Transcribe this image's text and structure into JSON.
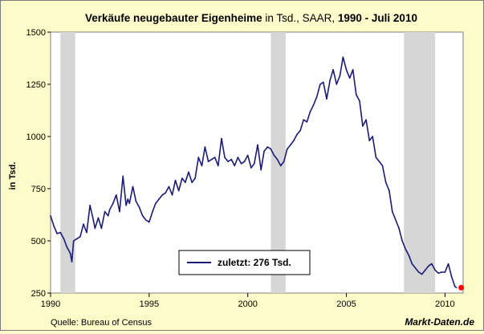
{
  "title": {
    "bold_part": "Verkäufe neugebauter Eigenheime",
    "normal_part": " in Tsd., SAAR, ",
    "bold_range": "1990 -  Juli 2010"
  },
  "source": "Quelle: Bureau of Census",
  "brand": "Markt-Daten.de",
  "colors": {
    "background": "#fdfbc9",
    "plot_bg": "#ffffff",
    "line": "#1a1a7a",
    "recession": "#d6d6d6",
    "last_point": "#ff0000"
  },
  "chart_data": {
    "type": "line",
    "ylabel": "in Tsd.",
    "xlim": [
      1990,
      2010.92
    ],
    "ylim": [
      250,
      1500
    ],
    "x_ticks": [
      1990,
      1995,
      2000,
      2005,
      2010
    ],
    "y_ticks": [
      250,
      500,
      750,
      1000,
      1250,
      1500
    ],
    "grid": false,
    "legend": {
      "position": "bottom-center",
      "label": "zuletzt: 276  Tsd."
    },
    "recessions": [
      [
        1990.5,
        1991.25
      ],
      [
        2001.17,
        2001.92
      ],
      [
        2007.92,
        2009.5
      ]
    ],
    "series": [
      {
        "x": [
          1990.0,
          1990.17,
          1990.33,
          1990.5,
          1990.67,
          1990.83,
          1991.0,
          1991.08,
          1991.17,
          1991.33,
          1991.5,
          1991.67,
          1991.83,
          1992.0,
          1992.17,
          1992.25,
          1992.42,
          1992.58,
          1992.75,
          1992.92,
          1993.0,
          1993.17,
          1993.33,
          1993.5,
          1993.67,
          1993.83,
          1993.92,
          1994.0,
          1994.17,
          1994.33,
          1994.5,
          1994.67,
          1994.83,
          1995.0,
          1995.17,
          1995.33,
          1995.5,
          1995.67,
          1995.83,
          1996.0,
          1996.17,
          1996.33,
          1996.5,
          1996.67,
          1996.83,
          1997.0,
          1997.17,
          1997.33,
          1997.5,
          1997.67,
          1997.83,
          1998.0,
          1998.17,
          1998.33,
          1998.5,
          1998.67,
          1998.83,
          1999.0,
          1999.17,
          1999.33,
          1999.5,
          1999.67,
          1999.83,
          2000.0,
          2000.17,
          2000.33,
          2000.5,
          2000.67,
          2000.83,
          2001.0,
          2001.17,
          2001.33,
          2001.5,
          2001.67,
          2001.83,
          2002.0,
          2002.17,
          2002.33,
          2002.5,
          2002.67,
          2002.83,
          2003.0,
          2003.17,
          2003.33,
          2003.5,
          2003.67,
          2003.83,
          2004.0,
          2004.17,
          2004.33,
          2004.5,
          2004.67,
          2004.83,
          2005.0,
          2005.17,
          2005.33,
          2005.5,
          2005.67,
          2005.83,
          2006.0,
          2006.17,
          2006.33,
          2006.5,
          2006.67,
          2006.83,
          2007.0,
          2007.17,
          2007.33,
          2007.5,
          2007.67,
          2007.83,
          2008.0,
          2008.17,
          2008.33,
          2008.5,
          2008.67,
          2008.83,
          2009.0,
          2009.17,
          2009.33,
          2009.5,
          2009.67,
          2009.83,
          2010.0,
          2010.17,
          2010.33,
          2010.5,
          2010.58
        ],
        "values": [
          620,
          570,
          535,
          540,
          510,
          470,
          440,
          400,
          500,
          510,
          520,
          580,
          540,
          670,
          600,
          560,
          610,
          560,
          640,
          620,
          650,
          680,
          720,
          640,
          810,
          670,
          700,
          680,
          760,
          690,
          660,
          620,
          600,
          590,
          640,
          680,
          700,
          720,
          730,
          760,
          720,
          790,
          740,
          800,
          780,
          830,
          780,
          800,
          900,
          860,
          950,
          880,
          890,
          900,
          860,
          990,
          900,
          880,
          890,
          860,
          900,
          870,
          880,
          910,
          850,
          870,
          960,
          840,
          930,
          950,
          940,
          910,
          890,
          860,
          880,
          940,
          960,
          980,
          1010,
          1030,
          1080,
          1070,
          1120,
          1150,
          1190,
          1250,
          1260,
          1180,
          1270,
          1320,
          1250,
          1290,
          1380,
          1320,
          1280,
          1320,
          1200,
          1170,
          1050,
          1080,
          980,
          1000,
          900,
          880,
          860,
          780,
          740,
          640,
          600,
          560,
          500,
          460,
          430,
          390,
          370,
          350,
          340,
          360,
          380,
          390,
          360,
          345,
          350,
          350,
          390,
          330,
          282,
          276
        ]
      }
    ],
    "last_value": 276
  }
}
